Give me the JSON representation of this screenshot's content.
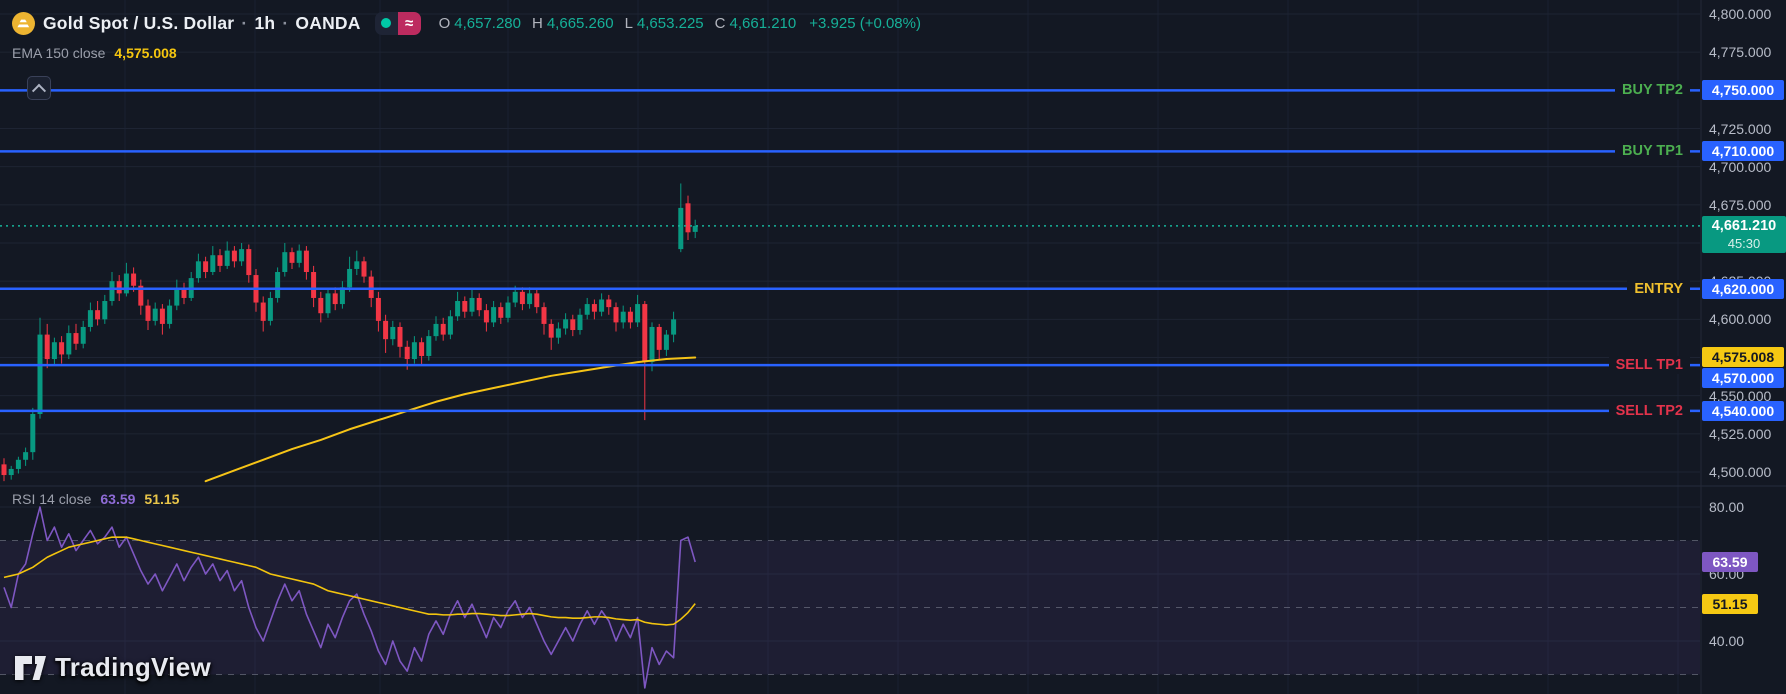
{
  "app": {
    "bg": "#131823",
    "accent_blue": "#2962ff",
    "up_color": "#089981",
    "down_color": "#f23645",
    "ema_color": "#f6c417",
    "rsi_color": "#7e57c2",
    "rsi_ma_color": "#f2c40e"
  },
  "icons": {
    "broker_wave": "≈"
  },
  "header": {
    "symbol": "Gold Spot / U.S. Dollar",
    "sep": "·",
    "timeframe": "1h",
    "exchange": "OANDA",
    "ohlc": {
      "o_label": "O",
      "o_value": "4,657.280",
      "h_label": "H",
      "h_value": "4,665.260",
      "l_label": "L",
      "l_value": "4,653.225",
      "c_label": "C",
      "c_value": "4,661.210",
      "change": "+3.925 (+0.08%)"
    },
    "ema_label": "EMA 150 close",
    "ema_value": "4,575.008"
  },
  "rsi_header": {
    "label": "RSI 14 close",
    "rsi_value": "63.59",
    "ma_value": "51.15"
  },
  "levels": [
    {
      "name": "BUY TP2",
      "badge": "4,750.000",
      "price": 4750,
      "text_color": "#4caf50",
      "badge_offset": 0
    },
    {
      "name": "BUY TP1",
      "badge": "4,710.000",
      "price": 4710,
      "text_color": "#4caf50",
      "badge_offset": 0
    },
    {
      "name": "ENTRY",
      "badge": "4,620.000",
      "price": 4620,
      "text_color": "#f0c02e",
      "badge_offset": 0
    },
    {
      "name": "SELL TP1",
      "badge": "4,570.000",
      "price": 4570,
      "text_color": "#e2334b",
      "badge_offset": 13
    },
    {
      "name": "SELL TP2",
      "badge": "4,540.000",
      "price": 4540,
      "text_color": "#e2334b",
      "badge_offset": 0
    }
  ],
  "current_price": {
    "value": "4,661.210",
    "countdown": "45:30",
    "price": 4661.21
  },
  "ema_badge": {
    "value": "4,575.008",
    "price": 4575.008
  },
  "rsi_badges": [
    {
      "value": "63.59",
      "level": 63.59,
      "style": "purple"
    },
    {
      "value": "51.15",
      "level": 51.15,
      "style": "yellow"
    }
  ],
  "price_axis": [
    {
      "label": "4,800.000",
      "value": 4800
    },
    {
      "label": "4,775.000",
      "value": 4775
    },
    {
      "label": "4,750.000",
      "value": 4750
    },
    {
      "label": "4,725.000",
      "value": 4725
    },
    {
      "label": "4,700.000",
      "value": 4700
    },
    {
      "label": "4,675.000",
      "value": 4675
    },
    {
      "label": "4,650.000",
      "value": 4650
    },
    {
      "label": "4,625.000",
      "value": 4625
    },
    {
      "label": "4,600.000",
      "value": 4600
    },
    {
      "label": "4,575.000",
      "value": 4575
    },
    {
      "label": "4,550.000",
      "value": 4550
    },
    {
      "label": "4,525.000",
      "value": 4525
    },
    {
      "label": "4,500.000",
      "value": 4500
    }
  ],
  "rsi_axis": [
    {
      "label": "80.00",
      "value": 80
    },
    {
      "label": "60.00",
      "value": 60
    },
    {
      "label": "40.00",
      "value": 40
    }
  ],
  "logo_text": "TradingView",
  "chart_data": {
    "type": "candlestick",
    "title": "Gold Spot / U.S. Dollar · 1h · OANDA",
    "price_pane": {
      "ylim": [
        4490,
        4805
      ],
      "grid_step": 25,
      "bars_ohlc": [
        [
          4505,
          4509,
          4494,
          4498
        ],
        [
          4498,
          4504,
          4495,
          4502
        ],
        [
          4502,
          4510,
          4499,
          4508
        ],
        [
          4508,
          4516,
          4504,
          4513
        ],
        [
          4513,
          4542,
          4508,
          4538
        ],
        [
          4538,
          4601,
          4535,
          4590
        ],
        [
          4590,
          4597,
          4568,
          4574
        ],
        [
          4574,
          4588,
          4570,
          4585
        ],
        [
          4585,
          4589,
          4571,
          4577
        ],
        [
          4577,
          4596,
          4574,
          4591
        ],
        [
          4591,
          4597,
          4580,
          4584
        ],
        [
          4584,
          4599,
          4581,
          4595
        ],
        [
          4595,
          4611,
          4592,
          4606
        ],
        [
          4606,
          4612,
          4596,
          4600
        ],
        [
          4600,
          4616,
          4597,
          4612
        ],
        [
          4612,
          4631,
          4609,
          4625
        ],
        [
          4625,
          4629,
          4612,
          4617
        ],
        [
          4617,
          4637,
          4615,
          4630
        ],
        [
          4630,
          4634,
          4618,
          4622
        ],
        [
          4622,
          4626,
          4603,
          4609
        ],
        [
          4609,
          4613,
          4593,
          4599
        ],
        [
          4599,
          4611,
          4596,
          4607
        ],
        [
          4607,
          4610,
          4590,
          4597
        ],
        [
          4597,
          4613,
          4594,
          4609
        ],
        [
          4609,
          4626,
          4606,
          4620
        ],
        [
          4620,
          4624,
          4610,
          4614
        ],
        [
          4614,
          4631,
          4612,
          4627
        ],
        [
          4627,
          4643,
          4624,
          4638
        ],
        [
          4638,
          4641,
          4627,
          4631
        ],
        [
          4631,
          4648,
          4629,
          4642
        ],
        [
          4642,
          4646,
          4631,
          4635
        ],
        [
          4635,
          4651,
          4633,
          4645
        ],
        [
          4645,
          4648,
          4634,
          4638
        ],
        [
          4638,
          4650,
          4635,
          4646
        ],
        [
          4646,
          4649,
          4624,
          4629
        ],
        [
          4629,
          4633,
          4605,
          4611
        ],
        [
          4611,
          4615,
          4592,
          4599
        ],
        [
          4599,
          4618,
          4596,
          4614
        ],
        [
          4614,
          4634,
          4611,
          4631
        ],
        [
          4631,
          4650,
          4628,
          4644
        ],
        [
          4644,
          4647,
          4633,
          4637
        ],
        [
          4637,
          4649,
          4634,
          4645
        ],
        [
          4645,
          4648,
          4626,
          4631
        ],
        [
          4631,
          4635,
          4608,
          4614
        ],
        [
          4614,
          4618,
          4598,
          4604
        ],
        [
          4604,
          4620,
          4601,
          4617
        ],
        [
          4617,
          4621,
          4606,
          4610
        ],
        [
          4610,
          4625,
          4607,
          4621
        ],
        [
          4621,
          4641,
          4618,
          4633
        ],
        [
          4633,
          4645,
          4629,
          4638
        ],
        [
          4638,
          4641,
          4624,
          4628
        ],
        [
          4628,
          4632,
          4608,
          4614
        ],
        [
          4614,
          4618,
          4592,
          4599
        ],
        [
          4599,
          4603,
          4578,
          4587
        ],
        [
          4587,
          4599,
          4583,
          4595
        ],
        [
          4595,
          4598,
          4575,
          4582
        ],
        [
          4582,
          4586,
          4567,
          4574
        ],
        [
          4574,
          4589,
          4571,
          4585
        ],
        [
          4585,
          4588,
          4570,
          4576
        ],
        [
          4576,
          4593,
          4573,
          4589
        ],
        [
          4589,
          4602,
          4586,
          4597
        ],
        [
          4597,
          4601,
          4586,
          4590
        ],
        [
          4590,
          4606,
          4587,
          4602
        ],
        [
          4602,
          4618,
          4599,
          4612
        ],
        [
          4612,
          4615,
          4601,
          4605
        ],
        [
          4605,
          4620,
          4602,
          4614
        ],
        [
          4614,
          4617,
          4602,
          4606
        ],
        [
          4606,
          4610,
          4592,
          4598
        ],
        [
          4598,
          4612,
          4595,
          4608
        ],
        [
          4608,
          4611,
          4597,
          4601
        ],
        [
          4601,
          4615,
          4598,
          4611
        ],
        [
          4611,
          4622,
          4608,
          4618
        ],
        [
          4618,
          4621,
          4606,
          4610
        ],
        [
          4610,
          4621,
          4607,
          4617
        ],
        [
          4617,
          4620,
          4604,
          4608
        ],
        [
          4608,
          4611,
          4590,
          4597
        ],
        [
          4597,
          4600,
          4580,
          4588
        ],
        [
          4588,
          4598,
          4584,
          4594
        ],
        [
          4594,
          4604,
          4590,
          4600
        ],
        [
          4600,
          4603,
          4589,
          4593
        ],
        [
          4593,
          4607,
          4590,
          4603
        ],
        [
          4603,
          4614,
          4600,
          4610
        ],
        [
          4610,
          4613,
          4600,
          4605
        ],
        [
          4605,
          4617,
          4602,
          4613
        ],
        [
          4613,
          4616,
          4603,
          4608
        ],
        [
          4608,
          4611,
          4592,
          4598
        ],
        [
          4598,
          4609,
          4594,
          4605
        ],
        [
          4605,
          4608,
          4594,
          4598
        ],
        [
          4598,
          4616,
          4595,
          4610
        ],
        [
          4610,
          4612,
          4534,
          4572
        ],
        [
          4572,
          4598,
          4566,
          4595
        ],
        [
          4595,
          4597,
          4574,
          4580
        ],
        [
          4580,
          4593,
          4576,
          4590
        ],
        [
          4590,
          4605,
          4585,
          4600
        ],
        [
          4646,
          4689,
          4644,
          4673
        ],
        [
          4676,
          4681,
          4652,
          4657
        ],
        [
          4657.28,
          4665.26,
          4653.225,
          4661.21
        ]
      ],
      "ema150_anchors": [
        [
          28,
          4494
        ],
        [
          32,
          4501
        ],
        [
          36,
          4508
        ],
        [
          40,
          4515
        ],
        [
          44,
          4521
        ],
        [
          48,
          4528
        ],
        [
          52,
          4534
        ],
        [
          56,
          4540
        ],
        [
          60,
          4546
        ],
        [
          64,
          4551
        ],
        [
          68,
          4555
        ],
        [
          72,
          4559
        ],
        [
          76,
          4563
        ],
        [
          80,
          4566
        ],
        [
          84,
          4569
        ],
        [
          88,
          4572
        ],
        [
          92,
          4574
        ],
        [
          96,
          4575.008
        ]
      ],
      "level_prices": [
        4750,
        4710,
        4620,
        4570,
        4540
      ],
      "last_price": 4661.21
    },
    "rsi_pane": {
      "ylim": [
        22,
        90
      ],
      "gridlines": [
        80,
        60,
        40
      ],
      "bands": [
        70,
        50,
        30
      ],
      "rsi_values": [
        56,
        50,
        60,
        63,
        72,
        80,
        70,
        74,
        68,
        72,
        67,
        70,
        73,
        69,
        71,
        74,
        68,
        71,
        66,
        61,
        57,
        60,
        55,
        59,
        63,
        58,
        62,
        65,
        60,
        63,
        58,
        61,
        55,
        58,
        50,
        44,
        40,
        46,
        52,
        57,
        52,
        55,
        48,
        43,
        38,
        45,
        41,
        47,
        52,
        54,
        48,
        43,
        37,
        33,
        40,
        34,
        31,
        38,
        34,
        42,
        46,
        42,
        48,
        52,
        47,
        51,
        46,
        41,
        47,
        44,
        49,
        52,
        47,
        50,
        45,
        40,
        36,
        40,
        44,
        40,
        45,
        49,
        45,
        49,
        46,
        40,
        45,
        41,
        47,
        26,
        38,
        33,
        37,
        35,
        70,
        71,
        63.59
      ],
      "rsi_ma_values": [
        59,
        59.5,
        60,
        61,
        62,
        63.5,
        65,
        66,
        67,
        68,
        68.5,
        69,
        69.5,
        70,
        70.5,
        71,
        71,
        71,
        70.5,
        70,
        69.5,
        69,
        68.5,
        68,
        67.5,
        67,
        66.5,
        66,
        65.5,
        65,
        64.5,
        64,
        63.5,
        63,
        62.5,
        62,
        61,
        60,
        59.5,
        59,
        58.5,
        58,
        57.5,
        57,
        56,
        55,
        54.5,
        54,
        53.5,
        53,
        52.5,
        52,
        51.5,
        51,
        50.5,
        50,
        49.5,
        49,
        48.5,
        48,
        48,
        47.8,
        47.8,
        48,
        48,
        48.2,
        48.2,
        48,
        47.8,
        47.6,
        47.6,
        47.8,
        48,
        48.2,
        48,
        47.6,
        47.2,
        47,
        47,
        46.8,
        46.8,
        47,
        47.2,
        47.2,
        47,
        46.6,
        46.4,
        46.2,
        46.4,
        45.6,
        45.2,
        45,
        44.8,
        45,
        46.5,
        48.5,
        51.15
      ]
    }
  }
}
